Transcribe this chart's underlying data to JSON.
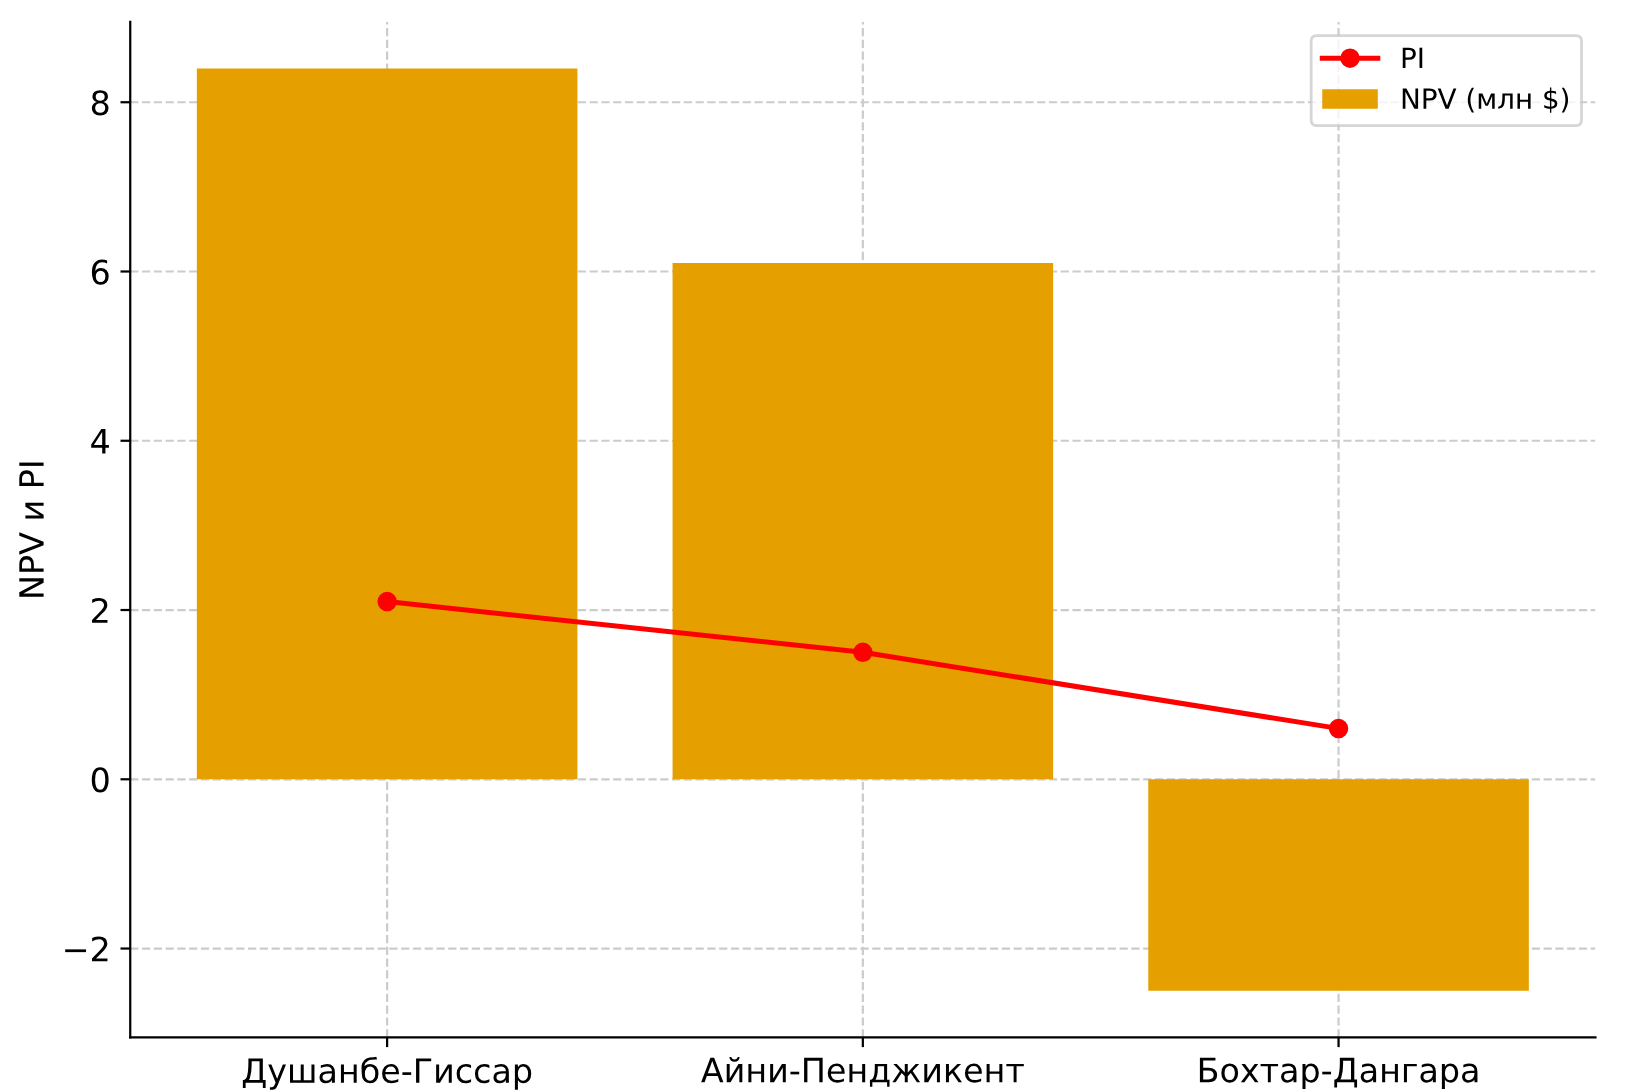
{
  "chart_data": {
    "type": "bar",
    "ylabel": "NPV и PI",
    "categories": [
      "Душанбе-Гиссар",
      "Айни-Пенджикент",
      "Бохтар-Дангара"
    ],
    "series": [
      {
        "name": "NPV (млн $)",
        "color": "#e5a000",
        "values": [
          8.4,
          6.1,
          -2.5
        ]
      },
      {
        "name": "PI",
        "type": "line",
        "color": "#ff0000",
        "values": [
          2.1,
          1.5,
          0.6
        ],
        "marker": "circle"
      }
    ],
    "ylim": [
      -3.05,
      8.95
    ],
    "yticks": [
      {
        "value": -2,
        "label": "−2"
      },
      0,
      2,
      4,
      6,
      8
    ],
    "grid": true,
    "legend": "top right"
  }
}
